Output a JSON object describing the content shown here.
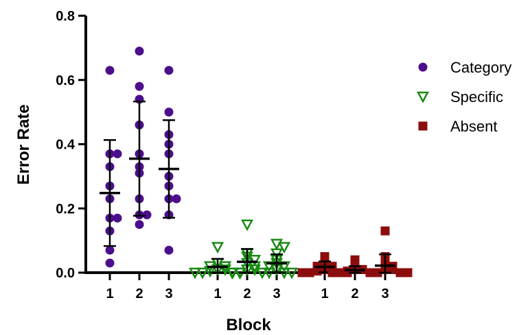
{
  "chart_data": {
    "type": "scatter",
    "xlabel": "Block",
    "ylabel": "Error Rate",
    "ylim": [
      0,
      0.8
    ],
    "yticks": [
      "0.0",
      "0.2",
      "0.4",
      "0.6",
      "0.8"
    ],
    "grid": false,
    "legend_position": "right",
    "groups": [
      {
        "name": "Category",
        "color": "#4b0f8c",
        "marker": "circle",
        "blocks": [
          {
            "label": "1",
            "points": [
              0.63,
              0.37,
              0.37,
              0.33,
              0.27,
              0.23,
              0.17,
              0.17,
              0.13,
              0.07,
              0.03
            ],
            "mean": 0.248,
            "sd": 0.165
          },
          {
            "label": "2",
            "points": [
              0.69,
              0.58,
              0.54,
              0.46,
              0.37,
              0.33,
              0.31,
              0.23,
              0.18,
              0.18,
              0.15
            ],
            "mean": 0.355,
            "sd": 0.178
          },
          {
            "label": "3",
            "points": [
              0.63,
              0.5,
              0.43,
              0.4,
              0.37,
              0.3,
              0.27,
              0.23,
              0.23,
              0.18,
              0.07
            ],
            "mean": 0.323,
            "sd": 0.152
          }
        ]
      },
      {
        "name": "Specific",
        "color": "#1a8a14",
        "marker": "triangle-down",
        "blocks": [
          {
            "label": "1",
            "points": [
              0.08,
              0.03,
              0.02,
              0.02,
              0.01,
              0.01,
              0.005,
              0.0,
              0.0,
              0.0,
              0.0
            ],
            "mean": 0.018,
            "sd": 0.025
          },
          {
            "label": "2",
            "points": [
              0.15,
              0.06,
              0.05,
              0.04,
              0.03,
              0.02,
              0.01,
              0.01,
              0.0,
              0.0,
              0.0
            ],
            "mean": 0.034,
            "sd": 0.04
          },
          {
            "label": "3",
            "points": [
              0.09,
              0.08,
              0.06,
              0.04,
              0.03,
              0.02,
              0.02,
              0.01,
              0.0,
              0.0,
              0.0
            ],
            "mean": 0.029,
            "sd": 0.028
          }
        ]
      },
      {
        "name": "Absent",
        "color": "#8c0d0d",
        "marker": "square",
        "blocks": [
          {
            "label": "1",
            "points": [
              0.05,
              0.03,
              0.02,
              0.02,
              0.01,
              0.01,
              0.005,
              0.0,
              0.0,
              0.0,
              0.0
            ],
            "mean": 0.018,
            "sd": 0.017
          },
          {
            "label": "2",
            "points": [
              0.04,
              0.02,
              0.01,
              0.01,
              0.005,
              0.0,
              0.0,
              0.0,
              0.0
            ],
            "mean": 0.008,
            "sd": 0.012
          },
          {
            "label": "3",
            "points": [
              0.13,
              0.05,
              0.03,
              0.02,
              0.01,
              0.01,
              0.0,
              0.0,
              0.0,
              0.0
            ],
            "mean": 0.022,
            "sd": 0.035
          }
        ]
      }
    ]
  }
}
